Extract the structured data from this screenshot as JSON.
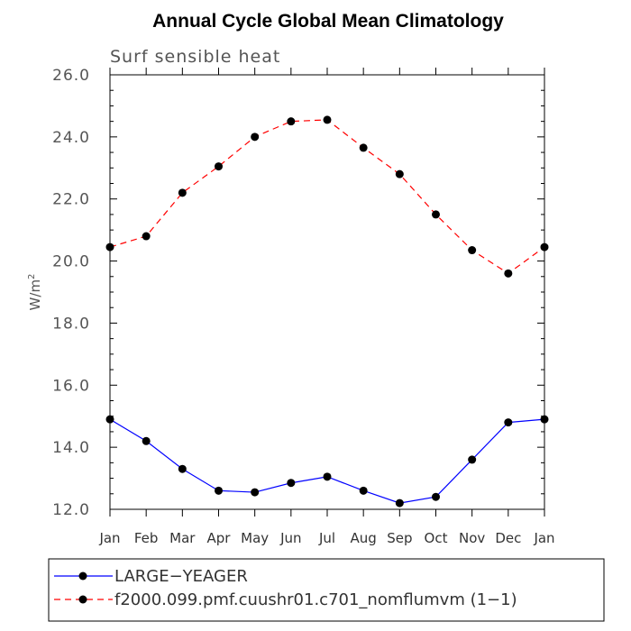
{
  "chart_data": {
    "type": "line",
    "title": "Annual Cycle Global Mean Climatology",
    "subtitle": "Surf sensible heat",
    "ylabel": "W/m",
    "ylabel_superscript": "2",
    "ylim": [
      12.0,
      26.0
    ],
    "yticks": [
      "12.0",
      "14.0",
      "16.0",
      "18.0",
      "20.0",
      "22.0",
      "24.0",
      "26.0"
    ],
    "categories": [
      "Jan",
      "Feb",
      "Mar",
      "Apr",
      "May",
      "Jun",
      "Jul",
      "Aug",
      "Sep",
      "Oct",
      "Nov",
      "Dec",
      "Jan"
    ],
    "series": [
      {
        "name": "LARGE−YEAGER",
        "color": "#0000ff",
        "style": "solid",
        "values": [
          14.9,
          14.2,
          13.3,
          12.6,
          12.55,
          12.85,
          13.05,
          12.6,
          12.2,
          12.4,
          13.6,
          14.8,
          14.9
        ]
      },
      {
        "name": "f2000.099.pmf.cuushr01.c701_nomflumvm (1−1)",
        "color": "#ff0000",
        "style": "dashed",
        "values": [
          20.45,
          20.8,
          22.2,
          23.05,
          24.0,
          24.5,
          24.55,
          23.65,
          22.8,
          21.5,
          20.35,
          19.6,
          20.45
        ]
      }
    ],
    "grid": false,
    "legend_position": "bottom"
  }
}
